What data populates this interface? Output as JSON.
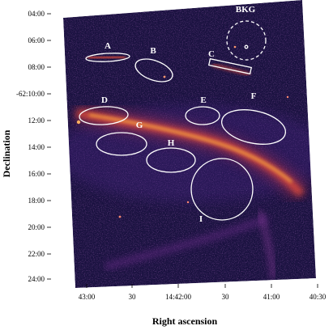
{
  "figure": {
    "ylabel": "Declination",
    "xlabel": "Right ascension",
    "y_ticks": [
      "04:00",
      "06:00",
      "08:00",
      "-62:10:00",
      "12:00",
      "14:00",
      "16:00",
      "18:00",
      "20:00",
      "22:00",
      "24:00"
    ],
    "x_ticks": [
      "43:00",
      "30",
      "14:42:00",
      "30",
      "41:00",
      "40:30"
    ],
    "regions": [
      {
        "label": "A",
        "shape": "ellipse"
      },
      {
        "label": "B",
        "shape": "ellipse"
      },
      {
        "label": "C",
        "shape": "box"
      },
      {
        "label": "D",
        "shape": "ellipse"
      },
      {
        "label": "E",
        "shape": "ellipse"
      },
      {
        "label": "F",
        "shape": "ellipse"
      },
      {
        "label": "G",
        "shape": "ellipse"
      },
      {
        "label": "H",
        "shape": "ellipse"
      },
      {
        "label": "I",
        "shape": "circle"
      },
      {
        "label": "BKG",
        "shape": "dashed-circle"
      }
    ],
    "colors": {
      "sky_background": "#1a1240",
      "filament_hot": "#ffb040",
      "filament_warm": "#e8503a",
      "region_outline": "#ffffff"
    }
  }
}
